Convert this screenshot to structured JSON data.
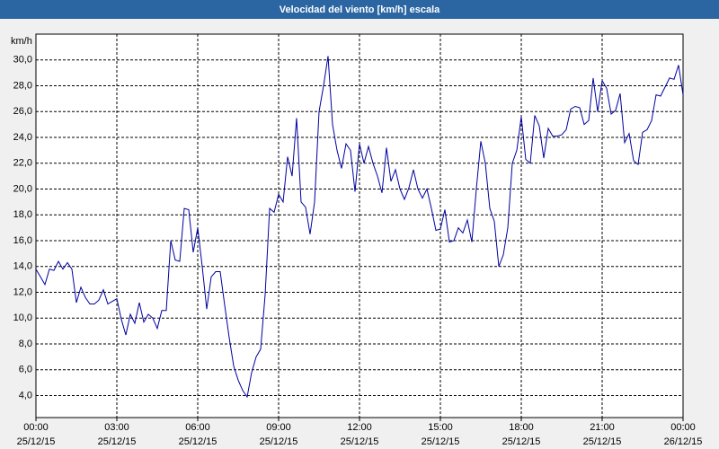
{
  "chart_data": {
    "type": "line",
    "title": "Velocidad del viento [km/h] escala",
    "y_label": "km/h",
    "x": [
      0,
      10,
      20,
      30,
      40,
      50,
      60,
      70,
      80,
      90,
      100,
      110,
      120,
      130,
      140,
      150,
      160,
      170,
      180,
      190,
      200,
      210,
      220,
      230,
      240,
      250,
      260,
      270,
      280,
      290,
      300,
      310,
      320,
      330,
      340,
      350,
      360,
      370,
      380,
      390,
      400,
      410,
      420,
      430,
      440,
      450,
      460,
      470,
      480,
      490,
      500,
      510,
      520,
      530,
      540,
      550,
      560,
      570,
      580,
      590,
      600,
      610,
      620,
      630,
      640,
      650,
      660,
      670,
      680,
      690,
      700,
      710,
      720,
      730,
      740,
      750,
      760,
      770,
      780,
      790,
      800,
      810,
      820,
      830,
      840,
      850,
      860,
      870,
      880,
      890,
      900,
      910,
      920,
      930,
      940,
      950,
      960,
      970,
      980,
      990,
      1000,
      1010,
      1020,
      1030,
      1040,
      1050,
      1060,
      1070,
      1080,
      1090,
      1100,
      1110,
      1120,
      1130,
      1140,
      1150,
      1160,
      1170,
      1180,
      1190,
      1200,
      1210,
      1220,
      1230,
      1240,
      1250,
      1260,
      1270,
      1280,
      1290,
      1300,
      1310,
      1320,
      1330,
      1340,
      1350,
      1360,
      1370,
      1380,
      1390,
      1400,
      1410,
      1420,
      1430,
      1440
    ],
    "series": [
      {
        "name": "Velocidad del viento",
        "color": "#0000a0",
        "values": [
          13.8,
          13.2,
          12.6,
          13.8,
          13.7,
          14.4,
          13.8,
          14.3,
          13.8,
          11.2,
          12.4,
          11.6,
          11.1,
          11.1,
          11.4,
          12.2,
          11.1,
          11.3,
          11.5,
          9.9,
          8.7,
          10.3,
          9.6,
          11.2,
          9.7,
          10.3,
          10.0,
          9.2,
          10.6,
          10.6,
          16.0,
          14.5,
          14.4,
          18.5,
          18.4,
          15.1,
          17.0,
          14.0,
          10.7,
          13.2,
          13.6,
          13.6,
          11.0,
          8.5,
          6.3,
          5.2,
          4.4,
          3.9,
          5.8,
          7.0,
          7.6,
          11.8,
          18.5,
          18.2,
          19.6,
          19.0,
          22.5,
          21.0,
          25.5,
          19.0,
          18.6,
          16.5,
          19.0,
          26.0,
          28.0,
          30.3,
          25.0,
          23.0,
          21.6,
          23.5,
          23.0,
          19.8,
          23.5,
          22.0,
          23.3,
          22.0,
          21.0,
          19.7,
          23.2,
          20.6,
          21.5,
          20.0,
          19.2,
          20.1,
          21.5,
          20.0,
          19.3,
          20.0,
          18.5,
          16.8,
          16.9,
          18.4,
          15.9,
          16.0,
          17.0,
          16.6,
          17.6,
          15.9,
          20.0,
          23.7,
          22.0,
          18.5,
          17.5,
          14.0,
          14.9,
          17.0,
          22.0,
          23.0,
          25.6,
          22.3,
          22.0,
          25.7,
          24.9,
          22.4,
          24.7,
          24.1,
          24.1,
          24.2,
          24.6,
          26.2,
          26.4,
          26.3,
          25.0,
          25.3,
          28.6,
          26.0,
          28.4,
          27.8,
          25.8,
          26.1,
          27.4,
          23.6,
          24.3,
          22.2,
          21.9,
          24.4,
          24.6,
          25.3,
          27.3,
          27.2,
          27.9,
          28.6,
          28.5,
          29.6,
          27.3
        ]
      }
    ],
    "xlim": [
      0,
      1440
    ],
    "xticks": [
      {
        "value": 0,
        "label": "00:00",
        "date": "25/12/15"
      },
      {
        "value": 180,
        "label": "03:00",
        "date": "25/12/15"
      },
      {
        "value": 360,
        "label": "06:00",
        "date": "25/12/15"
      },
      {
        "value": 540,
        "label": "09:00",
        "date": "25/12/15"
      },
      {
        "value": 720,
        "label": "12:00",
        "date": "25/12/15"
      },
      {
        "value": 900,
        "label": "15:00",
        "date": "25/12/15"
      },
      {
        "value": 1080,
        "label": "18:00",
        "date": "25/12/15"
      },
      {
        "value": 1260,
        "label": "21:00",
        "date": "25/12/15"
      },
      {
        "value": 1440,
        "label": "00:00",
        "date": "26/12/15"
      }
    ],
    "ylim": [
      2.3,
      32.0
    ],
    "yticks": [
      {
        "value": 4,
        "label": "4,0"
      },
      {
        "value": 6,
        "label": "6,0"
      },
      {
        "value": 8,
        "label": "8,0"
      },
      {
        "value": 10,
        "label": "10,0"
      },
      {
        "value": 12,
        "label": "12,0"
      },
      {
        "value": 14,
        "label": "14,0"
      },
      {
        "value": 16,
        "label": "16,0"
      },
      {
        "value": 18,
        "label": "18,0"
      },
      {
        "value": 20,
        "label": "20,0"
      },
      {
        "value": 22,
        "label": "22,0"
      },
      {
        "value": 24,
        "label": "24,0"
      },
      {
        "value": 26,
        "label": "26,0"
      },
      {
        "value": 28,
        "label": "28,0"
      },
      {
        "value": 30,
        "label": "30,0"
      }
    ],
    "grid": true
  }
}
